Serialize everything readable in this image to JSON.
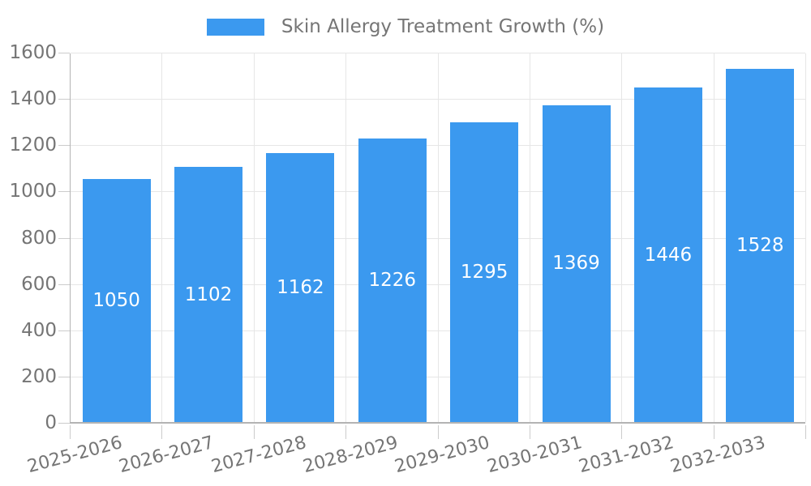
{
  "legend": {
    "label": "Skin Allergy Treatment Growth (%)"
  },
  "chart_data": {
    "type": "bar",
    "title": "Skin Allergy Treatment Growth (%)",
    "categories": [
      "2025-2026",
      "2026-2027",
      "2027-2028",
      "2028-2029",
      "2029-2030",
      "2030-2031",
      "2031-2032",
      "2032-2033"
    ],
    "values": [
      1050,
      1102,
      1162,
      1226,
      1295,
      1369,
      1446,
      1528
    ],
    "value_labels": [
      "1050",
      "1102",
      "1162",
      "1226",
      "1295",
      "1369",
      "1446",
      "1528"
    ],
    "xlabel": "",
    "ylabel": "",
    "ylim": [
      0,
      1600
    ],
    "yticks": [
      0,
      200,
      400,
      600,
      800,
      1000,
      1200,
      1400,
      1600
    ],
    "grid": true,
    "legend_position": "top"
  },
  "colors": {
    "bar": "#3b99ef",
    "grid": "#e6e6e6",
    "axis": "#b3b3b3",
    "tick": "#cccccc",
    "text": "#757575",
    "value_label": "#ffffff",
    "background": "#ffffff"
  }
}
